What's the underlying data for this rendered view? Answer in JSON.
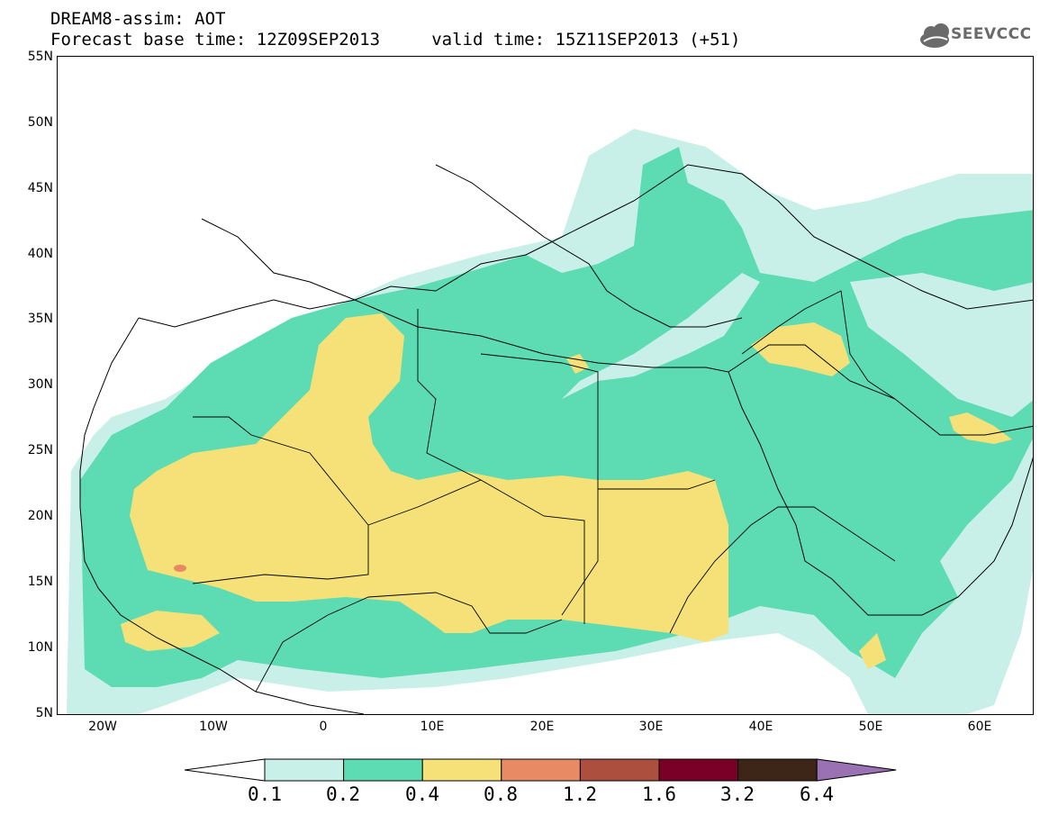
{
  "title_line1": "DREAM8-assim: AOT",
  "title_line2": "Forecast base time: 12Z09SEP2013     valid time: 15Z11SEP2013 (+51)",
  "logo_text": "SEEVCCC",
  "map": {
    "lat_labels": [
      "55N",
      "50N",
      "45N",
      "40N",
      "35N",
      "30N",
      "25N",
      "20N",
      "15N",
      "10N",
      "5N"
    ],
    "lon_labels": [
      "20W",
      "10W",
      "0",
      "10E",
      "20E",
      "30E",
      "40E",
      "50E",
      "60E"
    ],
    "lat_range": [
      5,
      55
    ],
    "lon_range": [
      -25,
      65
    ]
  },
  "colorbar": {
    "labels": [
      "0.1",
      "0.2",
      "0.4",
      "0.8",
      "1.2",
      "1.6",
      "3.2",
      "6.4"
    ],
    "colors": [
      "#ffffff",
      "#c8f0e8",
      "#5ddcb4",
      "#f5e178",
      "#e88a64",
      "#ad4f3f",
      "#7a0028",
      "#3d2617",
      "#9a72b4"
    ]
  }
}
